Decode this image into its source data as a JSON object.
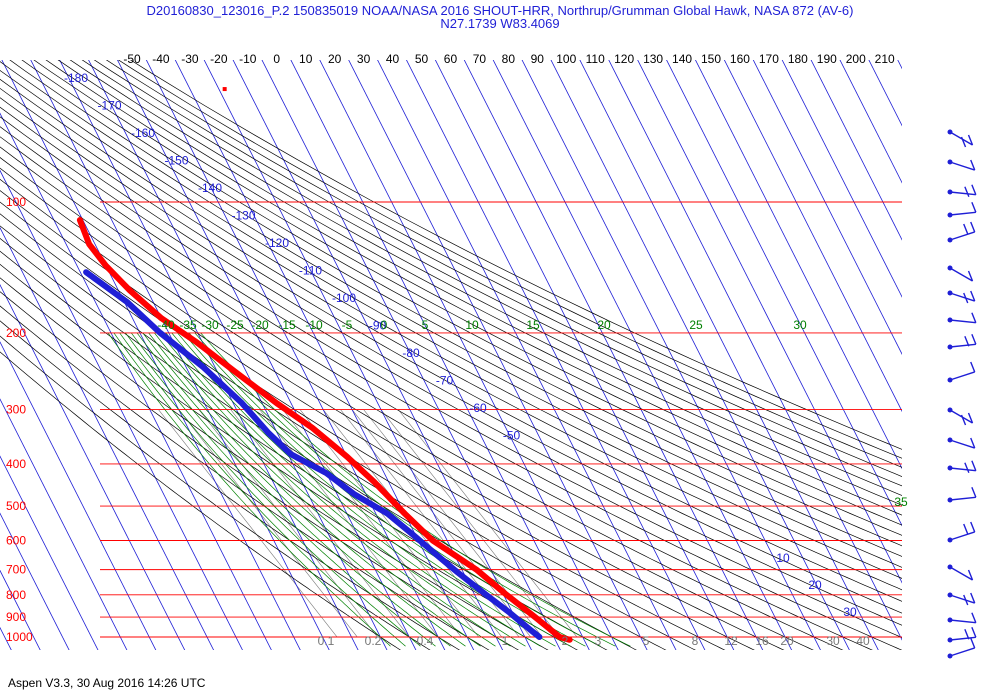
{
  "chart_data": {
    "type": "line",
    "title": "D20160830_123016_P.2 150835019 NOAA/NASA 2016 SHOUT-HRR, Northrup/Grumman Global Hawk, NASA 872 (AV-6)",
    "subtitle": "N27.1739 W83.4069",
    "footer": "Aspen V3.3, 30 Aug 2016  14:26 UTC",
    "x_ticks": [
      "-50",
      "-40",
      "-30",
      "-20",
      "-10",
      "0",
      "10",
      "20",
      "30",
      "40",
      "50",
      "60",
      "70",
      "80",
      "90",
      "100",
      "110",
      "120",
      "130",
      "140",
      "150",
      "160",
      "170",
      "180",
      "190",
      "200",
      "210"
    ],
    "pressure_levels": [
      100,
      200,
      300,
      400,
      500,
      600,
      700,
      800,
      900,
      1000
    ],
    "dry_adiabat_labels": [
      "-180",
      "-170",
      "-160",
      "-150",
      "-140",
      "-130",
      "-120",
      "-110",
      "-100",
      "-90",
      "-80",
      "-70",
      "-60",
      "-50"
    ],
    "moist_adiabat_labels": [
      "-40",
      "-35",
      "-30",
      "-25",
      "-20",
      "-15",
      "-10",
      "-5",
      "0",
      "5",
      "10",
      "15",
      "20",
      "25",
      "30",
      "35"
    ],
    "theta_e_labels": [
      "10",
      "20",
      "30"
    ],
    "mixing_ratio_labels": [
      "0.1",
      "0.2",
      "0.4",
      "1",
      "2",
      "3",
      "5",
      "8",
      "12",
      "16",
      "20",
      "30",
      "40"
    ],
    "series": [
      {
        "color": "#ff0000",
        "points": [
          [
            -71,
            110
          ],
          [
            -72,
            125
          ],
          [
            -70,
            140
          ],
          [
            -66,
            160
          ],
          [
            -60,
            185
          ],
          [
            -52,
            210
          ],
          [
            -44,
            245
          ],
          [
            -35,
            290
          ],
          [
            -27,
            330
          ],
          [
            -20,
            385
          ],
          [
            -15,
            440
          ],
          [
            -10,
            520
          ],
          [
            -5,
            600
          ],
          [
            5,
            700
          ],
          [
            11,
            800
          ],
          [
            17,
            900
          ],
          [
            22,
            1000
          ],
          [
            25,
            1015
          ]
        ]
      },
      {
        "color": "#1f1fd6",
        "points": [
          [
            -78,
            145
          ],
          [
            -69,
            170
          ],
          [
            -63,
            200
          ],
          [
            -54,
            240
          ],
          [
            -47,
            290
          ],
          [
            -43,
            340
          ],
          [
            -39,
            380
          ],
          [
            -30,
            420
          ],
          [
            -24,
            470
          ],
          [
            -16,
            520
          ],
          [
            -11,
            580
          ],
          [
            -6,
            650
          ],
          [
            -2,
            710
          ],
          [
            4,
            800
          ],
          [
            9,
            880
          ],
          [
            13,
            960
          ],
          [
            15,
            1000
          ]
        ]
      }
    ],
    "isolated_point": {
      "color": "#ff0000",
      "temp": 2,
      "pressure": 55
    },
    "colors": {
      "isobar": "#ff0000",
      "isotherm": "#1f1fd6",
      "dry_adiabat": "#000000",
      "moist_adiabat": "#008000",
      "mixing_ratio": "#777777",
      "axis_text": "#000000"
    }
  }
}
